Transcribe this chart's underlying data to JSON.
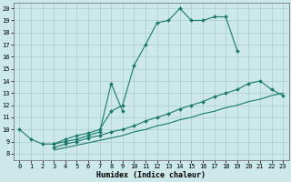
{
  "xlabel": "Humidex (Indice chaleur)",
  "bg_color": "#cce8e8",
  "grid_color": "#aacccc",
  "line_color": "#1a7a6a",
  "xlim": [
    -0.5,
    23.5
  ],
  "ylim": [
    7.5,
    20.5
  ],
  "yticks": [
    8,
    9,
    10,
    11,
    12,
    13,
    14,
    15,
    16,
    17,
    18,
    19,
    20
  ],
  "xticks": [
    0,
    1,
    2,
    3,
    4,
    5,
    6,
    7,
    8,
    9,
    10,
    11,
    12,
    13,
    14,
    15,
    16,
    17,
    18,
    19,
    20,
    21,
    22,
    23
  ],
  "line1_x": [
    0,
    1,
    2,
    3,
    4,
    5,
    6,
    7,
    8,
    9,
    10,
    11,
    12,
    13,
    14,
    15,
    16,
    17,
    18,
    19
  ],
  "line1_y": [
    10.0,
    9.2,
    8.8,
    8.8,
    9.2,
    9.5,
    9.7,
    10.0,
    11.5,
    12.0,
    15.3,
    17.0,
    18.8,
    19.0,
    20.0,
    19.0,
    19.0,
    19.3,
    19.3,
    16.5
  ],
  "line2_x": [
    3,
    4,
    5,
    6,
    7,
    8,
    9
  ],
  "line2_y": [
    8.8,
    9.0,
    9.2,
    9.5,
    9.8,
    13.8,
    11.5
  ],
  "line3_x": [
    3,
    4,
    5,
    6,
    7,
    8,
    9,
    10,
    11,
    12,
    13,
    14,
    15,
    16,
    17,
    18,
    19,
    20,
    21,
    22,
    23
  ],
  "line3_y": [
    8.5,
    8.8,
    9.0,
    9.3,
    9.5,
    9.8,
    10.0,
    10.3,
    10.7,
    11.0,
    11.3,
    11.7,
    12.0,
    12.3,
    12.7,
    13.0,
    13.3,
    13.8,
    14.0,
    13.3,
    12.8
  ],
  "line4_x": [
    3,
    4,
    5,
    6,
    7,
    8,
    9,
    10,
    11,
    12,
    13,
    14,
    15,
    16,
    17,
    18,
    19,
    20,
    21,
    22,
    23
  ],
  "line4_y": [
    8.3,
    8.5,
    8.7,
    8.9,
    9.1,
    9.3,
    9.5,
    9.8,
    10.0,
    10.3,
    10.5,
    10.8,
    11.0,
    11.3,
    11.5,
    11.8,
    12.0,
    12.3,
    12.5,
    12.8,
    13.0
  ]
}
